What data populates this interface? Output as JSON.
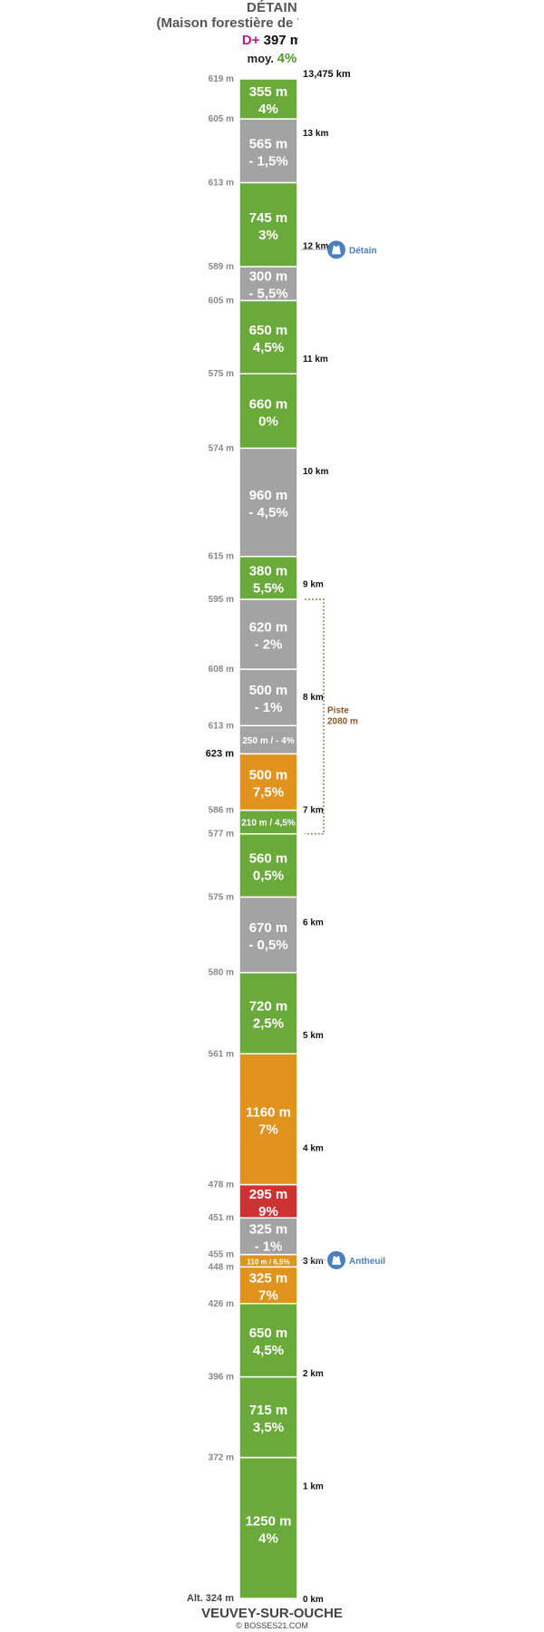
{
  "header": {
    "title": "DÉTAIN",
    "subtitle": "(Maison forestière de Vergy Débats)",
    "dplus_label": "D+",
    "dplus_value": "397 m",
    "avg_label": "moy.",
    "avg_value": "4%"
  },
  "colors": {
    "green": "#6aaa3a",
    "gray": "#a3a3a3",
    "orange": "#e0931d",
    "red": "#cf3232",
    "poi": "#4a7fc0",
    "track": "#8b5a2b"
  },
  "chart_data": {
    "type": "segment-profile",
    "total_km_label": "13,475 km",
    "start_alt_label": "Alt. 324 m",
    "segments": [
      {
        "len": 1250,
        "label": "1250 m",
        "grade": "4%",
        "color": "green"
      },
      {
        "len": 715,
        "label": "715 m",
        "grade": "3,5%",
        "color": "green"
      },
      {
        "len": 650,
        "label": "650 m",
        "grade": "4,5%",
        "color": "green"
      },
      {
        "len": 325,
        "label": "325 m",
        "grade": "7%",
        "color": "orange"
      },
      {
        "len": 110,
        "label": "110 m / 6,5%",
        "grade": "",
        "color": "orange",
        "inline": true
      },
      {
        "len": 325,
        "label": "325 m",
        "grade": "- 1%",
        "color": "gray"
      },
      {
        "len": 295,
        "label": "295 m",
        "grade": "9%",
        "color": "red"
      },
      {
        "len": 1160,
        "label": "1160 m",
        "grade": "7%",
        "color": "orange"
      },
      {
        "len": 720,
        "label": "720 m",
        "grade": "2,5%",
        "color": "green"
      },
      {
        "len": 670,
        "label": "670 m",
        "grade": "- 0,5%",
        "color": "gray"
      },
      {
        "len": 560,
        "label": "560 m",
        "grade": "0,5%",
        "color": "green"
      },
      {
        "len": 210,
        "label": "210 m / 4,5%",
        "grade": "",
        "color": "green",
        "inline": true
      },
      {
        "len": 500,
        "label": "500 m",
        "grade": "7,5%",
        "color": "orange"
      },
      {
        "len": 250,
        "label": "250 m / - 4%",
        "grade": "",
        "color": "gray",
        "inline": true
      },
      {
        "len": 500,
        "label": "500 m",
        "grade": "- 1%",
        "color": "gray"
      },
      {
        "len": 620,
        "label": "620 m",
        "grade": "- 2%",
        "color": "gray"
      },
      {
        "len": 380,
        "label": "380 m",
        "grade": "5,5%",
        "color": "green"
      },
      {
        "len": 960,
        "label": "960 m",
        "grade": "- 4,5%",
        "color": "gray"
      },
      {
        "len": 660,
        "label": "660 m",
        "grade": "0%",
        "color": "green"
      },
      {
        "len": 650,
        "label": "650 m",
        "grade": "4,5%",
        "color": "green"
      },
      {
        "len": 300,
        "label": "300 m",
        "grade": "- 5,5%",
        "color": "gray"
      },
      {
        "len": 745,
        "label": "745 m",
        "grade": "3%",
        "color": "green"
      },
      {
        "len": 565,
        "label": "565 m",
        "grade": "- 1,5%",
        "color": "gray"
      },
      {
        "len": 355,
        "label": "355 m",
        "grade": "4%",
        "color": "green"
      }
    ],
    "boundary_altitudes": [
      {
        "at": 1250,
        "label": "372 m"
      },
      {
        "at": 1965,
        "label": "396 m"
      },
      {
        "at": 2615,
        "label": "426 m"
      },
      {
        "at": 2940,
        "label": "448 m"
      },
      {
        "at": 3050,
        "label": "455 m"
      },
      {
        "at": 3375,
        "label": "451 m"
      },
      {
        "at": 3670,
        "label": "478 m"
      },
      {
        "at": 4830,
        "label": "561 m"
      },
      {
        "at": 5550,
        "label": "580 m"
      },
      {
        "at": 6220,
        "label": "575 m"
      },
      {
        "at": 6780,
        "label": "577 m"
      },
      {
        "at": 6990,
        "label": "586 m"
      },
      {
        "at": 7490,
        "label": "623 m",
        "bold": true
      },
      {
        "at": 7740,
        "label": "613 m"
      },
      {
        "at": 8240,
        "label": "608 m"
      },
      {
        "at": 8860,
        "label": "595 m"
      },
      {
        "at": 9240,
        "label": "615 m"
      },
      {
        "at": 10200,
        "label": "574 m"
      },
      {
        "at": 10860,
        "label": "575 m"
      },
      {
        "at": 11510,
        "label": "605 m"
      },
      {
        "at": 11810,
        "label": "589 m"
      },
      {
        "at": 12555,
        "label": "613 m"
      },
      {
        "at": 13120,
        "label": "605 m"
      },
      {
        "at": 13475,
        "label": "619 m"
      }
    ],
    "km_markers": [
      "0 km",
      "1 km",
      "2 km",
      "3 km",
      "4 km",
      "5 km",
      "6 km",
      "7 km",
      "8 km",
      "9 km",
      "10 km",
      "11 km",
      "12 km",
      "13 km"
    ],
    "pois": [
      {
        "at": 11960,
        "label": "Détain"
      },
      {
        "at": 3000,
        "label": "Antheuil"
      }
    ],
    "track": {
      "from": 6780,
      "to": 8860,
      "label1": "Piste",
      "label2": "2080 m"
    }
  },
  "footer": {
    "start_name": "VEUVEY-SUR-OUCHE",
    "credit": "© BOSSES21.COM"
  }
}
